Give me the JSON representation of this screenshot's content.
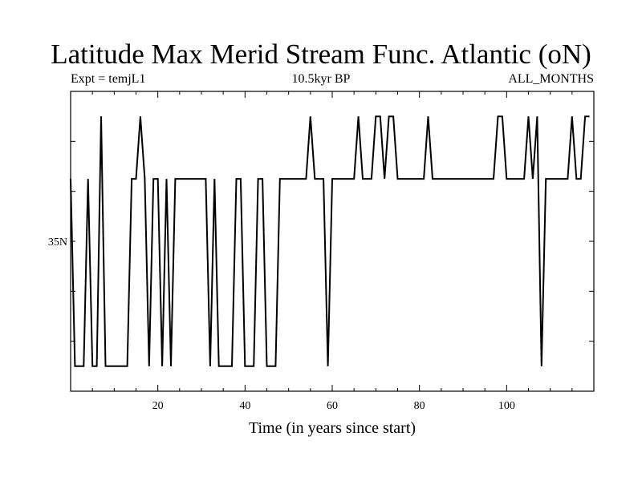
{
  "chart_data": {
    "type": "line",
    "title": "Latitude Max Merid Stream Func. Atlantic (oN)",
    "subtitle_left": "Expt = temjL1",
    "subtitle_center": "10.5kyr BP",
    "subtitle_right": "ALL_MONTHS",
    "xlabel": "Time (in years since start)",
    "ylabel": "",
    "xlim": [
      0,
      120
    ],
    "ylim": [
      29,
      41
    ],
    "xticks": [
      20,
      40,
      60,
      80,
      100
    ],
    "xtick_labels": [
      "20",
      "40",
      "60",
      "80",
      "100"
    ],
    "yticks": [
      31,
      33,
      35,
      37,
      39
    ],
    "ytick_labels": [
      "",
      "",
      "35N",
      "",
      ""
    ],
    "grid": false,
    "series": [
      {
        "name": "",
        "color": "#000000",
        "x": [
          0,
          1,
          2,
          3,
          4,
          5,
          6,
          7,
          8,
          9,
          10,
          11,
          12,
          13,
          14,
          15,
          16,
          17,
          18,
          19,
          20,
          21,
          22,
          23,
          24,
          25,
          26,
          27,
          28,
          29,
          30,
          31,
          32,
          33,
          34,
          35,
          36,
          37,
          38,
          39,
          40,
          41,
          42,
          43,
          44,
          45,
          46,
          47,
          48,
          49,
          50,
          51,
          52,
          53,
          54,
          55,
          56,
          57,
          58,
          59,
          60,
          61,
          62,
          63,
          64,
          65,
          66,
          67,
          68,
          69,
          70,
          71,
          72,
          73,
          74,
          75,
          76,
          77,
          78,
          79,
          80,
          81,
          82,
          83,
          84,
          85,
          86,
          87,
          88,
          89,
          90,
          91,
          92,
          93,
          94,
          95,
          96,
          97,
          98,
          99,
          100,
          101,
          102,
          103,
          104,
          105,
          106,
          107,
          108,
          109,
          110,
          111,
          112,
          113,
          114,
          115,
          116,
          117,
          118,
          119
        ],
        "y": [
          37.5,
          30,
          30,
          30,
          37.5,
          30,
          30,
          40,
          30,
          30,
          30,
          30,
          30,
          30,
          37.5,
          37.5,
          40,
          37.5,
          30,
          37.5,
          37.5,
          30,
          37.5,
          30,
          37.5,
          37.5,
          37.5,
          37.5,
          37.5,
          37.5,
          37.5,
          37.5,
          30,
          37.5,
          30,
          30,
          30,
          30,
          37.5,
          37.5,
          30,
          30,
          30,
          37.5,
          37.5,
          30,
          30,
          30,
          37.5,
          37.5,
          37.5,
          37.5,
          37.5,
          37.5,
          37.5,
          40,
          37.5,
          37.5,
          37.5,
          30,
          37.5,
          37.5,
          37.5,
          37.5,
          37.5,
          37.5,
          40,
          37.5,
          37.5,
          37.5,
          40,
          40,
          37.5,
          40,
          40,
          37.5,
          37.5,
          37.5,
          37.5,
          37.5,
          37.5,
          37.5,
          40,
          37.5,
          37.5,
          37.5,
          37.5,
          37.5,
          37.5,
          37.5,
          37.5,
          37.5,
          37.5,
          37.5,
          37.5,
          37.5,
          37.5,
          37.5,
          40,
          40,
          37.5,
          37.5,
          37.5,
          37.5,
          37.5,
          40,
          37.5,
          40,
          30,
          37.5,
          37.5,
          37.5,
          37.5,
          37.5,
          37.5,
          40,
          37.5,
          37.5,
          40,
          40
        ]
      }
    ]
  }
}
